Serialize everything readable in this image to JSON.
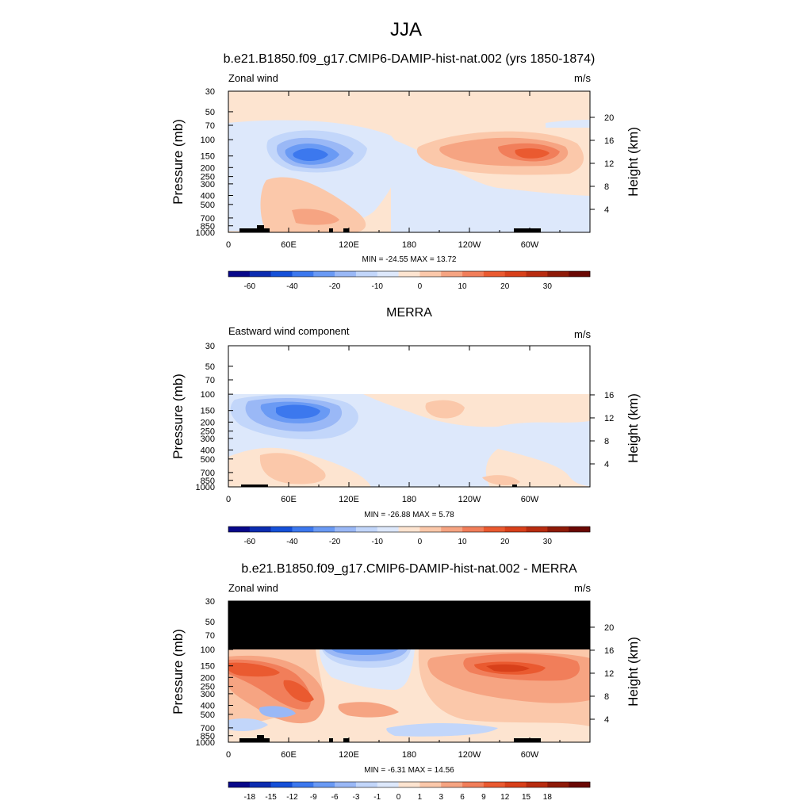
{
  "page_title": "JJA",
  "colors": {
    "contour_levels": [
      "#08088a",
      "#0c2cb0",
      "#1550d8",
      "#3c78ee",
      "#6a9af4",
      "#9ab8f6",
      "#c2d6fa",
      "#dde8fb",
      "#fde4d0",
      "#fbc8aa",
      "#f6a482",
      "#f17e5a",
      "#ea5a30",
      "#d8401a",
      "#b82c10",
      "#8e1a08",
      "#6a0804"
    ],
    "land_mask": "#000000",
    "no_data": "#000000"
  },
  "chart_data": [
    {
      "type": "heatmap",
      "panel_title": "b.e21.B1850.f09_g17.CMIP6-DAMIP-hist-nat.002 (yrs 1850-1874)",
      "left_label": "Zonal wind",
      "right_label": "m/s",
      "ylabel": "Pressure (mb)",
      "ylabel_right": "Height (km)",
      "x_ticks": [
        "0",
        "60E",
        "120E",
        "180",
        "120W",
        "60W"
      ],
      "y_ticks": [
        "30",
        "50",
        "70",
        "100",
        "150",
        "200",
        "250",
        "300",
        "400",
        "500",
        "700",
        "850",
        "1000"
      ],
      "height_ticks": [
        "20",
        "16",
        "12",
        "8",
        "4"
      ],
      "stats": "MIN = -24.55  MAX =  13.72",
      "colorbar_labels": [
        "-60",
        "-40",
        "-20",
        "-10",
        "0",
        "10",
        "20",
        "30"
      ]
    },
    {
      "type": "heatmap",
      "panel_title": "MERRA",
      "left_label": "Eastward wind component",
      "right_label": "m/s",
      "ylabel": "Pressure (mb)",
      "ylabel_right": "Height (km)",
      "x_ticks": [
        "0",
        "60E",
        "120E",
        "180",
        "120W",
        "60W"
      ],
      "y_ticks": [
        "30",
        "50",
        "70",
        "100",
        "150",
        "200",
        "250",
        "300",
        "400",
        "500",
        "700",
        "850",
        "1000"
      ],
      "height_ticks": [
        "16",
        "12",
        "8",
        "4"
      ],
      "stats": "MIN = -26.88  MAX =   5.78",
      "colorbar_labels": [
        "-60",
        "-40",
        "-20",
        "-10",
        "0",
        "10",
        "20",
        "30"
      ]
    },
    {
      "type": "heatmap",
      "panel_title": "b.e21.B1850.f09_g17.CMIP6-DAMIP-hist-nat.002 - MERRA",
      "left_label": "Zonal wind",
      "right_label": "m/s",
      "ylabel": "Pressure (mb)",
      "ylabel_right": "Height (km)",
      "x_ticks": [
        "0",
        "60E",
        "120E",
        "180",
        "120W",
        "60W"
      ],
      "y_ticks": [
        "30",
        "50",
        "70",
        "100",
        "150",
        "200",
        "250",
        "300",
        "400",
        "500",
        "700",
        "850",
        "1000"
      ],
      "height_ticks": [
        "20",
        "16",
        "12",
        "8",
        "4"
      ],
      "stats": "MIN =  -6.31  MAX =  14.56",
      "colorbar_labels": [
        "-18",
        "-15",
        "-12",
        "-9",
        "-6",
        "-3",
        "-1",
        "0",
        "1",
        "3",
        "6",
        "9",
        "12",
        "15",
        "18"
      ]
    }
  ]
}
